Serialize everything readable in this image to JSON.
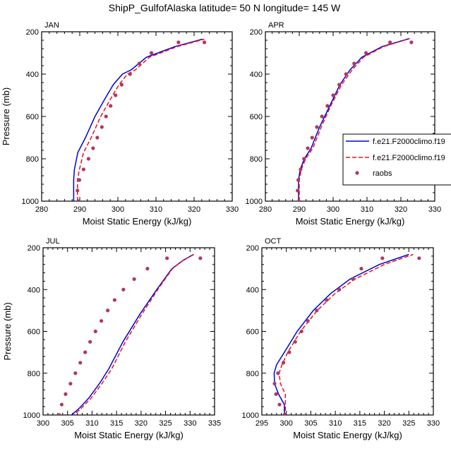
{
  "title": "ShipP_GulfofAlaska  latitude= 50 N longitude= 145 W",
  "colors": {
    "series1": "#0000dd",
    "series2": "#ee1111",
    "raobs": "#b0385e"
  },
  "legend": {
    "placement": "right, over APR panel",
    "entries": [
      "f.e21.F2000climo.f19",
      "f.e21.F2000climo.f19",
      "raobs"
    ]
  },
  "chart_data": [
    {
      "panel": "JAN",
      "type": "line",
      "xlabel": "Moist Static Energy (kJ/kg)",
      "ylabel": "Pressure (mb)",
      "xlim": [
        280,
        330
      ],
      "ylim": [
        1000,
        200
      ],
      "y_reversed": true,
      "grid": false,
      "xticks": [
        "280",
        "290",
        "300",
        "310",
        "320",
        "330"
      ],
      "yticks": [
        "200",
        "400",
        "600",
        "800",
        "1000"
      ],
      "series": [
        {
          "name": "f.e21.F2000climo.f19",
          "style": "solid",
          "x": [
            288.4,
            288.4,
            288.6,
            289.5,
            291.5,
            294,
            296.5,
            298.8,
            301.2,
            303.5,
            307.5,
            315,
            322.2
          ],
          "y": [
            1000,
            900,
            850,
            770,
            700,
            600,
            520,
            450,
            400,
            380,
            320,
            270,
            235
          ]
        },
        {
          "name": "f.e21.F2000climo.f19",
          "style": "dashed",
          "x": [
            289.4,
            289.4,
            289.9,
            291,
            293,
            295.5,
            298,
            300.3,
            302.5,
            304.6,
            308.3,
            315.6,
            322.7
          ],
          "y": [
            1000,
            900,
            850,
            770,
            700,
            600,
            520,
            450,
            400,
            380,
            320,
            270,
            235
          ]
        },
        {
          "name": "raobs",
          "style": "markers",
          "x": [
            289.6,
            289.4,
            289.9,
            291,
            292.3,
            293.5,
            294.6,
            295.8,
            296.9,
            298.1,
            299.4,
            301,
            303.2,
            305.6,
            308.8,
            315.9,
            322.7
          ],
          "y": [
            1000,
            950,
            900,
            850,
            800,
            750,
            700,
            650,
            600,
            550,
            500,
            450,
            400,
            350,
            300,
            250,
            250
          ]
        }
      ]
    },
    {
      "panel": "APR",
      "type": "line",
      "xlabel": "Moist Static Energy (kJ/kg)",
      "ylabel": "",
      "xlim": [
        280,
        330
      ],
      "ylim": [
        1000,
        200
      ],
      "y_reversed": true,
      "grid": false,
      "xticks": [
        "280",
        "290",
        "300",
        "310",
        "320",
        "330"
      ],
      "yticks": [
        "200",
        "400",
        "600",
        "800",
        "1000"
      ],
      "series": [
        {
          "name": "f.e21.F2000climo.f19",
          "style": "solid",
          "x": [
            289.8,
            289.8,
            290.3,
            291.5,
            293.5,
            296,
            299,
            302,
            305,
            308.5,
            314.5,
            322.5
          ],
          "y": [
            1000,
            900,
            850,
            800,
            750,
            650,
            550,
            450,
            380,
            320,
            270,
            232
          ]
        },
        {
          "name": "f.e21.F2000climo.f19",
          "style": "dashed",
          "x": [
            290,
            290,
            290.6,
            291.9,
            294,
            296.5,
            299.3,
            302.5,
            305.6,
            309,
            314.9,
            322.6
          ],
          "y": [
            1000,
            900,
            850,
            800,
            750,
            650,
            550,
            450,
            380,
            320,
            270,
            232
          ]
        },
        {
          "name": "raobs",
          "style": "markers",
          "x": [
            289.9,
            289.5,
            289.7,
            290.4,
            291.4,
            292.5,
            293.8,
            295.2,
            296.7,
            298.3,
            300,
            301.8,
            303.8,
            306.2,
            309.7,
            316.8,
            323.1
          ],
          "y": [
            1000,
            950,
            900,
            850,
            800,
            750,
            700,
            650,
            600,
            550,
            500,
            450,
            400,
            350,
            300,
            250,
            250
          ]
        }
      ]
    },
    {
      "panel": "JUL",
      "type": "line",
      "xlabel": "Moist Static Energy (kJ/kg)",
      "ylabel": "Pressure (mb)",
      "xlim": [
        300,
        335
      ],
      "ylim": [
        1000,
        200
      ],
      "y_reversed": true,
      "grid": false,
      "xticks": [
        "300",
        "305",
        "310",
        "315",
        "320",
        "325",
        "330",
        "335"
      ],
      "yticks": [
        "200",
        "400",
        "600",
        "800",
        "1000"
      ],
      "series": [
        {
          "name": "f.e21.F2000climo.f19",
          "style": "solid",
          "x": [
            305.3,
            307.3,
            309.3,
            311.5,
            313.4,
            316.3,
            319.7,
            323.2,
            326.3,
            328.6,
            330.7
          ],
          "y": [
            1010,
            970,
            920,
            850,
            780,
            650,
            520,
            400,
            300,
            260,
            232
          ]
        },
        {
          "name": "f.e21.F2000climo.f19",
          "style": "dashed",
          "x": [
            305.8,
            307.7,
            309.8,
            312,
            314,
            316.8,
            320.1,
            323.4,
            326.4,
            328.6,
            330.8
          ],
          "y": [
            1010,
            970,
            920,
            850,
            780,
            650,
            520,
            400,
            300,
            260,
            232
          ]
        },
        {
          "name": "raobs",
          "style": "markers",
          "x": [
            303.3,
            303.8,
            304.6,
            305.6,
            306.6,
            307.6,
            308.6,
            309.6,
            310.7,
            311.9,
            313.2,
            314.6,
            316.4,
            318.6,
            321.3,
            325.3,
            332.1
          ],
          "y": [
            1000,
            950,
            900,
            850,
            800,
            750,
            700,
            650,
            600,
            550,
            500,
            450,
            400,
            350,
            300,
            250,
            250
          ]
        }
      ]
    },
    {
      "panel": "OCT",
      "type": "line",
      "xlabel": "Moist Static Energy (kJ/kg)",
      "ylabel": "",
      "xlim": [
        295,
        330
      ],
      "ylim": [
        1000,
        200
      ],
      "y_reversed": true,
      "grid": false,
      "xticks": [
        "295",
        "300",
        "305",
        "310",
        "315",
        "320",
        "325",
        "330"
      ],
      "yticks": [
        "200",
        "400",
        "600",
        "800",
        "1000"
      ],
      "series": [
        {
          "name": "f.e21.F2000climo.f19",
          "style": "solid",
          "x": [
            299.6,
            299.6,
            298.4,
            297.6,
            297.5,
            298,
            299.6,
            302.2,
            305.5,
            309,
            313,
            319,
            325
          ],
          "y": [
            1010,
            950,
            900,
            850,
            800,
            760,
            700,
            600,
            500,
            420,
            350,
            280,
            232
          ]
        },
        {
          "name": "f.e21.F2000climo.f19",
          "style": "dashed",
          "x": [
            299.8,
            299.8,
            299.8,
            298.8,
            298.5,
            299.1,
            300.3,
            302.9,
            306.3,
            309.9,
            314,
            320,
            325.9
          ],
          "y": [
            1010,
            950,
            900,
            850,
            800,
            760,
            700,
            600,
            500,
            420,
            350,
            280,
            232
          ]
        },
        {
          "name": "raobs",
          "style": "markers",
          "x": [
            299.6,
            298.6,
            297.9,
            297.6,
            298.3,
            299.4,
            300.6,
            301.8,
            303.1,
            304.4,
            306.2,
            308.2,
            310.8,
            313.6,
            315.3,
            319.6,
            327.1
          ],
          "y": [
            1000,
            950,
            900,
            850,
            800,
            750,
            700,
            650,
            600,
            550,
            500,
            450,
            400,
            350,
            300,
            250,
            250
          ]
        }
      ]
    }
  ]
}
